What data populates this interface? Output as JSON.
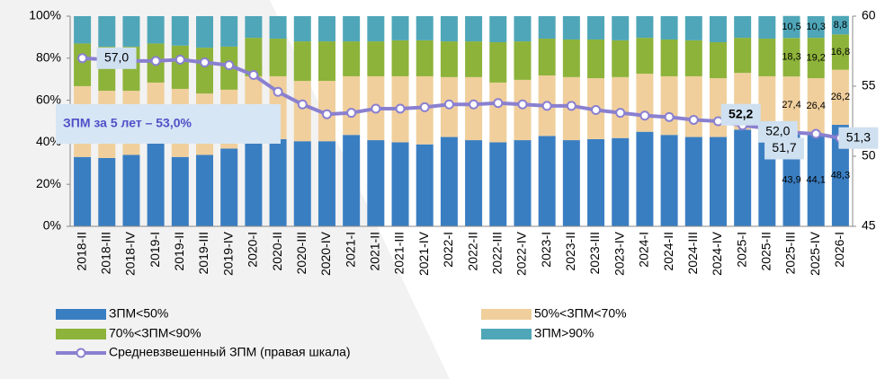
{
  "chart_data": {
    "type": "bar",
    "stacked": true,
    "categories": [
      "2018-II",
      "2018-III",
      "2018-IV",
      "2019-I",
      "2019-II",
      "2019-III",
      "2019-IV",
      "2020-I",
      "2020-II",
      "2020-III",
      "2020-IV",
      "2021-I",
      "2021-II",
      "2021-III",
      "2021-IV",
      "2022-I",
      "2022-II",
      "2022-III",
      "2022-IV",
      "2023-I",
      "2023-II",
      "2023-III",
      "2023-IV",
      "2024-I",
      "2024-II",
      "2024-III",
      "2024-IV",
      "2025-I",
      "2025-II",
      "2025-III",
      "2025-IV",
      "2026-I"
    ],
    "series": [
      {
        "name": "ЗПМ<50%",
        "color": "#3a7ec2",
        "values": [
          33,
          32.5,
          34,
          40,
          33,
          34,
          37,
          40,
          41.5,
          40.5,
          40.5,
          43.5,
          41,
          40,
          39,
          42.5,
          41,
          40,
          41,
          43,
          41,
          41.5,
          42,
          45,
          43.5,
          42.5,
          42.5,
          46,
          44.5,
          43.9,
          44.1,
          48.3
        ],
        "value_labels": [
          null,
          null,
          null,
          null,
          null,
          null,
          null,
          null,
          null,
          null,
          null,
          null,
          null,
          null,
          null,
          null,
          null,
          null,
          null,
          null,
          null,
          null,
          null,
          null,
          null,
          null,
          null,
          null,
          null,
          "43,9",
          "44,1",
          "48,3"
        ]
      },
      {
        "name": "50%<ЗПМ<70%",
        "color": "#f0cf9c",
        "values": [
          33.7,
          32,
          30.5,
          28.4,
          32.4,
          29.2,
          28,
          31.4,
          29.9,
          28.7,
          28.7,
          27.9,
          30.4,
          31.4,
          32.4,
          28.5,
          30,
          28.4,
          28.7,
          28.8,
          30,
          29,
          29,
          27.6,
          27.9,
          28.9,
          28,
          27,
          26.9,
          27.4,
          26.4,
          26.2
        ],
        "value_labels": [
          null,
          null,
          null,
          null,
          null,
          null,
          null,
          null,
          null,
          null,
          null,
          null,
          null,
          null,
          null,
          null,
          null,
          null,
          null,
          null,
          null,
          null,
          null,
          null,
          null,
          null,
          null,
          null,
          null,
          "27,4",
          "26,4",
          "26,2"
        ]
      },
      {
        "name": "70%<ЗПМ<90%",
        "color": "#8db33a",
        "values": [
          20.3,
          21,
          21,
          18.6,
          20.6,
          21.8,
          20.5,
          18.3,
          17.9,
          18.8,
          18.8,
          16.6,
          16.6,
          17.1,
          17.1,
          17,
          17,
          19.2,
          18.3,
          17.5,
          17.9,
          18.4,
          17.5,
          17.1,
          17.5,
          17.1,
          17.1,
          16.7,
          17.9,
          18.3,
          19.2,
          16.8
        ],
        "value_labels": [
          null,
          null,
          null,
          null,
          null,
          null,
          null,
          null,
          null,
          null,
          null,
          null,
          null,
          null,
          null,
          null,
          null,
          null,
          null,
          null,
          null,
          null,
          null,
          null,
          null,
          null,
          null,
          null,
          null,
          "18,3",
          "19,2",
          "16,8"
        ]
      },
      {
        "name": "ЗПМ>90%",
        "color": "#4fa6b8",
        "values": [
          13,
          14.5,
          14.5,
          13,
          14,
          15,
          14.5,
          10.3,
          10.7,
          12,
          12,
          12,
          12,
          11.5,
          11.5,
          12,
          12,
          12.4,
          12,
          10.7,
          11.1,
          11.1,
          11.5,
          10.3,
          11.1,
          11.5,
          12.4,
          10.3,
          10.7,
          10.5,
          10.3,
          8.8
        ],
        "value_labels": [
          null,
          null,
          null,
          null,
          null,
          null,
          null,
          null,
          null,
          null,
          null,
          null,
          null,
          null,
          null,
          null,
          null,
          null,
          null,
          null,
          null,
          null,
          null,
          null,
          null,
          null,
          null,
          null,
          null,
          "10,5",
          "10,3",
          "8,8"
        ]
      },
      {
        "name": "Средневзвешенный ЗПМ (правая шкала)",
        "color": "#8a80d0",
        "type": "line",
        "axis": "y2",
        "values": [
          57,
          56.9,
          56.8,
          56.8,
          56.9,
          56.7,
          56.5,
          55.8,
          54.6,
          53.7,
          53,
          53.1,
          53.4,
          53.4,
          53.5,
          53.7,
          53.7,
          53.8,
          53.7,
          53.6,
          53.6,
          53.3,
          53.1,
          52.9,
          52.8,
          52.6,
          52.5,
          52.2,
          52,
          51.7,
          51.6,
          51.3
        ],
        "value_labels": [
          "57,0",
          null,
          null,
          null,
          null,
          null,
          null,
          null,
          null,
          null,
          null,
          null,
          null,
          null,
          null,
          null,
          null,
          null,
          null,
          null,
          null,
          null,
          null,
          null,
          null,
          null,
          null,
          "52,2",
          "52,0",
          "51,7",
          null,
          "51,3"
        ]
      }
    ],
    "annotation": "ЗПМ за 5 лет – 53,0%",
    "ylim": [
      0,
      100
    ],
    "yticks": [
      {
        "value": 0,
        "label": "0%"
      },
      {
        "value": 20,
        "label": "20%"
      },
      {
        "value": 40,
        "label": "40%"
      },
      {
        "value": 60,
        "label": "60%"
      },
      {
        "value": 80,
        "label": "80%"
      },
      {
        "value": 100,
        "label": "100%"
      }
    ],
    "y2lim": [
      45,
      60
    ],
    "y2ticks": [
      45,
      50,
      55,
      60
    ]
  }
}
